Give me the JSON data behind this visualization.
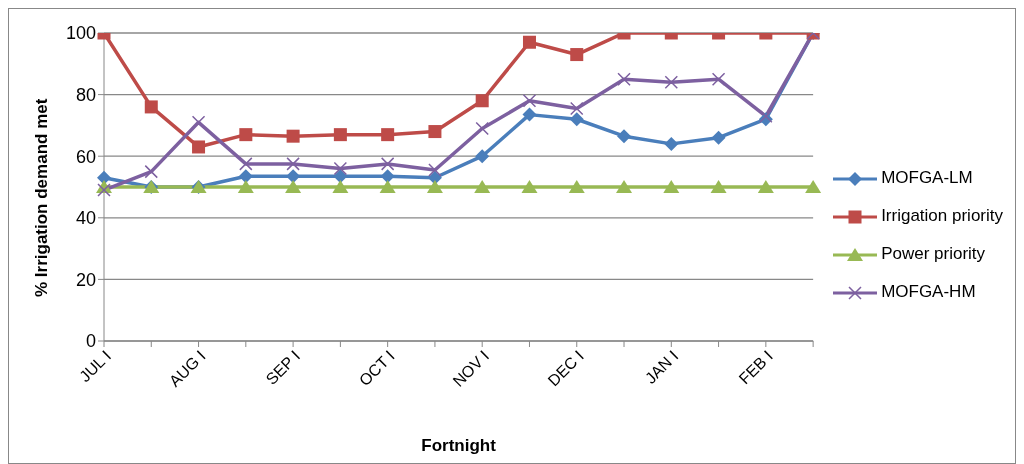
{
  "chart_data": {
    "type": "line",
    "xlabel": "Fortnight",
    "ylabel": "% Irrigation demand met",
    "categories": [
      "JUL I",
      null,
      "AUG I",
      null,
      "SEP I",
      null,
      "OCT I",
      null,
      "NOV I",
      null,
      "DEC I",
      null,
      "JAN I",
      null,
      "FEB I",
      null
    ],
    "series": [
      {
        "name": "MOFGA-LM",
        "color": "#4a7ebb",
        "marker": "diamond",
        "values": [
          53,
          50,
          50,
          53.5,
          53.5,
          53.5,
          53.5,
          53,
          60,
          73.5,
          72,
          66.5,
          64,
          66,
          72,
          100
        ]
      },
      {
        "name": "Irrigation priority",
        "color": "#be4b48",
        "marker": "square",
        "values": [
          100,
          76,
          63,
          67,
          66.5,
          67,
          67,
          68,
          78,
          97,
          93,
          100,
          100,
          100,
          100,
          100
        ]
      },
      {
        "name": "Power priority",
        "color": "#98b954",
        "marker": "triangle",
        "values": [
          50,
          50,
          50,
          50,
          50,
          50,
          50,
          50,
          50,
          50,
          50,
          50,
          50,
          50,
          50,
          50
        ]
      },
      {
        "name": "MOFGA-HM",
        "color": "#7d60a0",
        "marker": "cross",
        "values": [
          49,
          55,
          71,
          57.5,
          57.5,
          56,
          57.5,
          55.5,
          69,
          78,
          75.5,
          85,
          84,
          85,
          73,
          100
        ]
      }
    ],
    "ylim": [
      0,
      100
    ],
    "yticks": [
      0,
      20,
      40,
      60,
      80,
      100
    ],
    "grid": "y",
    "legend": "right",
    "line_style": "solid"
  }
}
